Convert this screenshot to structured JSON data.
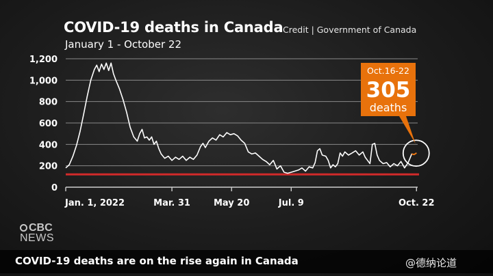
{
  "title": "COVID-19 deaths in Canada",
  "subtitle": "January 1 - October 22",
  "credit": "Credit | Government of Canada",
  "callout": {
    "dates": "Oct.16-22",
    "value": "305",
    "unit": "deaths"
  },
  "brand": {
    "line1": "CBC",
    "line2": "NEWS"
  },
  "ticker": "COVID-19 deaths are on the rise again in Canada",
  "watermark": "@德纳论道",
  "colors": {
    "line": "#ffffff",
    "threshold": "#d12a2a",
    "callout": "#e8720c",
    "grid": "#8a8a8a"
  },
  "chart_data": {
    "type": "line",
    "title": "COVID-19 deaths in Canada",
    "subtitle": "January 1 - October 22",
    "ylim": [
      0,
      1200
    ],
    "yticks": [
      0,
      200,
      400,
      600,
      800,
      1000,
      1200
    ],
    "ytick_labels": [
      "0",
      "200",
      "400",
      "600",
      "800",
      "1,000",
      "1,200"
    ],
    "xlim": [
      0,
      295
    ],
    "xticks": [
      0,
      89,
      139,
      189,
      294
    ],
    "xtick_labels": [
      "Jan. 1, 2022",
      "Mar. 31",
      "May 20",
      "Jul. 9",
      "Oct. 22"
    ],
    "grid": true,
    "threshold_line": 120,
    "series": [
      {
        "values": [
          [
            0,
            180
          ],
          [
            3,
            210
          ],
          [
            6,
            290
          ],
          [
            9,
            390
          ],
          [
            12,
            520
          ],
          [
            15,
            680
          ],
          [
            18,
            850
          ],
          [
            21,
            1000
          ],
          [
            24,
            1100
          ],
          [
            26,
            1140
          ],
          [
            28,
            1080
          ],
          [
            30,
            1150
          ],
          [
            32,
            1100
          ],
          [
            34,
            1160
          ],
          [
            36,
            1090
          ],
          [
            38,
            1160
          ],
          [
            40,
            1060
          ],
          [
            42,
            1000
          ],
          [
            45,
            920
          ],
          [
            48,
            820
          ],
          [
            51,
            700
          ],
          [
            54,
            560
          ],
          [
            57,
            470
          ],
          [
            60,
            430
          ],
          [
            62,
            500
          ],
          [
            64,
            540
          ],
          [
            66,
            460
          ],
          [
            68,
            470
          ],
          [
            70,
            440
          ],
          [
            72,
            470
          ],
          [
            74,
            400
          ],
          [
            76,
            430
          ],
          [
            78,
            360
          ],
          [
            80,
            310
          ],
          [
            83,
            270
          ],
          [
            86,
            290
          ],
          [
            89,
            250
          ],
          [
            92,
            280
          ],
          [
            95,
            260
          ],
          [
            98,
            290
          ],
          [
            101,
            250
          ],
          [
            104,
            280
          ],
          [
            107,
            260
          ],
          [
            110,
            300
          ],
          [
            113,
            380
          ],
          [
            115,
            410
          ],
          [
            117,
            370
          ],
          [
            120,
            430
          ],
          [
            123,
            460
          ],
          [
            126,
            440
          ],
          [
            129,
            490
          ],
          [
            132,
            470
          ],
          [
            135,
            510
          ],
          [
            138,
            490
          ],
          [
            141,
            500
          ],
          [
            144,
            480
          ],
          [
            147,
            440
          ],
          [
            150,
            410
          ],
          [
            153,
            330
          ],
          [
            156,
            310
          ],
          [
            159,
            320
          ],
          [
            162,
            290
          ],
          [
            165,
            260
          ],
          [
            168,
            240
          ],
          [
            171,
            210
          ],
          [
            174,
            250
          ],
          [
            177,
            170
          ],
          [
            180,
            200
          ],
          [
            183,
            140
          ],
          [
            186,
            130
          ],
          [
            189,
            140
          ],
          [
            192,
            150
          ],
          [
            195,
            160
          ],
          [
            198,
            180
          ],
          [
            201,
            150
          ],
          [
            204,
            190
          ],
          [
            207,
            180
          ],
          [
            209,
            230
          ],
          [
            211,
            340
          ],
          [
            213,
            360
          ],
          [
            215,
            300
          ],
          [
            218,
            290
          ],
          [
            220,
            250
          ],
          [
            222,
            180
          ],
          [
            224,
            210
          ],
          [
            226,
            190
          ],
          [
            228,
            220
          ],
          [
            230,
            320
          ],
          [
            232,
            290
          ],
          [
            234,
            330
          ],
          [
            237,
            300
          ],
          [
            240,
            320
          ],
          [
            243,
            340
          ],
          [
            246,
            300
          ],
          [
            249,
            330
          ],
          [
            251,
            280
          ],
          [
            253,
            250
          ],
          [
            255,
            220
          ],
          [
            257,
            400
          ],
          [
            259,
            410
          ],
          [
            261,
            300
          ],
          [
            263,
            250
          ],
          [
            266,
            220
          ],
          [
            269,
            230
          ],
          [
            272,
            190
          ],
          [
            275,
            220
          ],
          [
            278,
            200
          ],
          [
            281,
            240
          ],
          [
            284,
            180
          ],
          [
            287,
            230
          ],
          [
            290,
            310
          ],
          [
            292,
            305
          ],
          [
            294,
            320
          ]
        ]
      }
    ],
    "annotation": {
      "x": 292,
      "label": "Oct.16-22",
      "value": 305,
      "unit": "deaths"
    }
  }
}
